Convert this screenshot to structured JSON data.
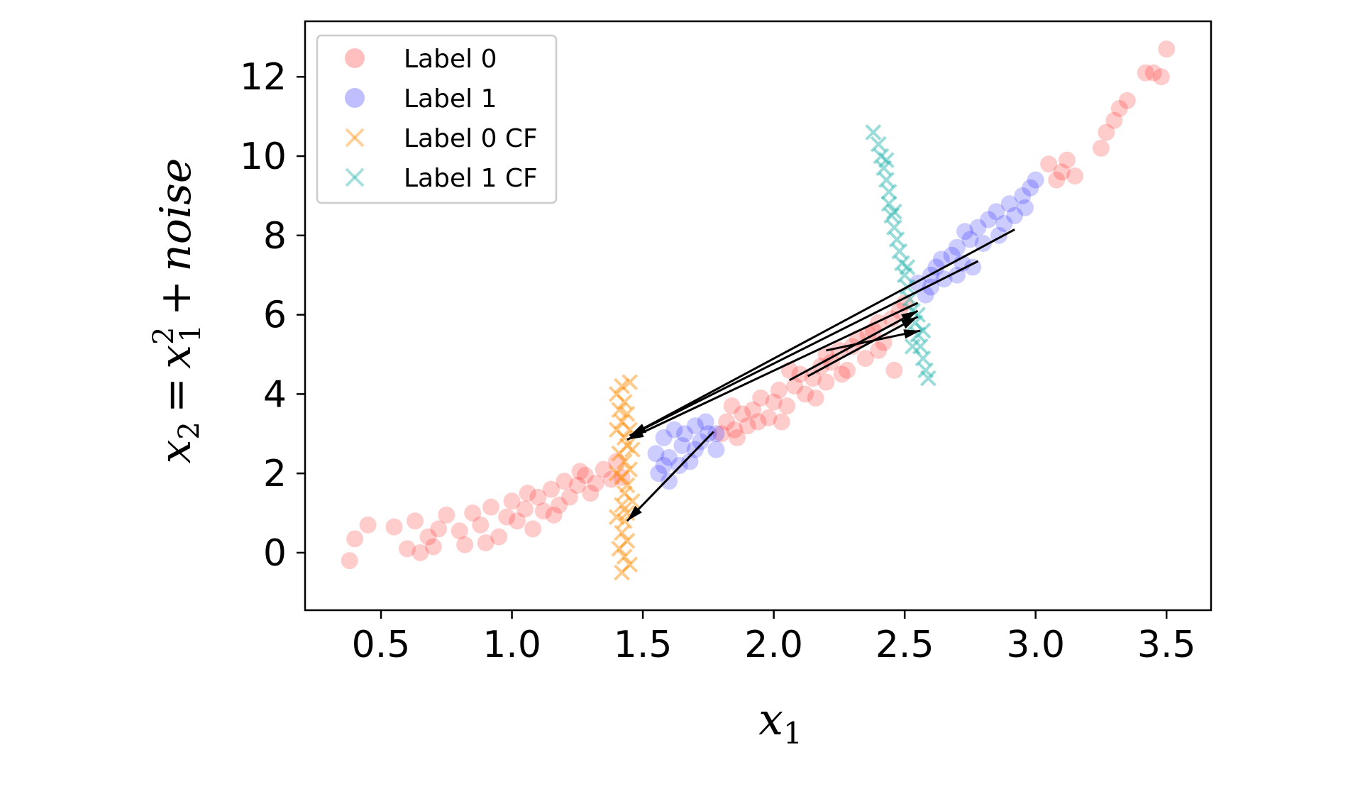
{
  "chart_data": {
    "type": "scatter",
    "title": "",
    "xlabel": {
      "base": "x",
      "sub": "1"
    },
    "ylabel": {
      "lhs_base": "x",
      "lhs_sub": "2",
      "eq": "=",
      "rhs_base": "x",
      "rhs_sup": "2",
      "rhs_sub": "1",
      "plus": "+",
      "noise": "noise"
    },
    "xlim": [
      0.21,
      3.67
    ],
    "ylim": [
      -1.45,
      13.4
    ],
    "xticks": [
      "0.5",
      "1.0",
      "1.5",
      "2.0",
      "2.5",
      "3.0",
      "3.5"
    ],
    "yticks": [
      "0",
      "2",
      "4",
      "6",
      "8",
      "10",
      "12"
    ],
    "grid": false,
    "legend_position": "top-left",
    "legend": [
      {
        "label": "Label 0",
        "marker": "circle",
        "color": "#ff0000"
      },
      {
        "label": "Label 1",
        "marker": "circle",
        "color": "#0000ff"
      },
      {
        "label": "Label 0 CF",
        "marker": "x",
        "color": "#ff8c00"
      },
      {
        "label": "Label 1 CF",
        "marker": "x",
        "color": "#20b2aa"
      }
    ],
    "series": [
      {
        "name": "Label 0",
        "marker": "circle",
        "color": "#ff0000",
        "points": [
          [
            0.38,
            -0.2
          ],
          [
            0.4,
            0.35
          ],
          [
            0.45,
            0.7
          ],
          [
            0.55,
            0.65
          ],
          [
            0.6,
            0.1
          ],
          [
            0.65,
            0.0
          ],
          [
            0.63,
            0.8
          ],
          [
            0.68,
            0.4
          ],
          [
            0.72,
            0.6
          ],
          [
            0.75,
            0.95
          ],
          [
            0.8,
            0.55
          ],
          [
            0.82,
            0.2
          ],
          [
            0.85,
            1.0
          ],
          [
            0.88,
            0.7
          ],
          [
            0.92,
            1.15
          ],
          [
            0.95,
            0.4
          ],
          [
            0.98,
            0.9
          ],
          [
            1.0,
            1.3
          ],
          [
            1.02,
            0.8
          ],
          [
            1.05,
            1.1
          ],
          [
            1.08,
            0.6
          ],
          [
            1.1,
            1.4
          ],
          [
            1.12,
            1.05
          ],
          [
            1.15,
            1.6
          ],
          [
            1.18,
            1.2
          ],
          [
            1.2,
            1.8
          ],
          [
            1.22,
            1.4
          ],
          [
            1.25,
            1.7
          ],
          [
            1.28,
            1.95
          ],
          [
            1.3,
            1.5
          ],
          [
            1.32,
            1.75
          ],
          [
            1.35,
            2.1
          ],
          [
            1.38,
            1.85
          ],
          [
            1.4,
            2.3
          ],
          [
            1.42,
            1.9
          ],
          [
            0.9,
            0.25
          ],
          [
            1.06,
            1.5
          ],
          [
            1.16,
            0.95
          ],
          [
            1.26,
            2.05
          ],
          [
            0.7,
            0.15
          ],
          [
            1.8,
            3.0
          ],
          [
            1.82,
            3.3
          ],
          [
            1.85,
            3.1
          ],
          [
            1.88,
            3.5
          ],
          [
            1.9,
            3.2
          ],
          [
            1.92,
            3.6
          ],
          [
            1.95,
            3.9
          ],
          [
            1.98,
            3.4
          ],
          [
            2.0,
            3.8
          ],
          [
            2.02,
            4.1
          ],
          [
            2.05,
            3.7
          ],
          [
            2.08,
            4.2
          ],
          [
            2.1,
            4.5
          ],
          [
            2.12,
            4.0
          ],
          [
            2.15,
            4.4
          ],
          [
            2.18,
            4.7
          ],
          [
            2.2,
            4.3
          ],
          [
            2.22,
            4.8
          ],
          [
            2.25,
            5.1
          ],
          [
            2.28,
            4.6
          ],
          [
            2.3,
            5.2
          ],
          [
            2.32,
            5.4
          ],
          [
            2.35,
            4.9
          ],
          [
            2.38,
            5.6
          ],
          [
            2.4,
            5.8
          ],
          [
            2.42,
            5.3
          ],
          [
            2.45,
            5.9
          ],
          [
            2.48,
            6.1
          ],
          [
            2.5,
            6.3
          ],
          [
            2.46,
            4.6
          ],
          [
            1.86,
            2.9
          ],
          [
            1.94,
            3.3
          ],
          [
            2.06,
            4.6
          ],
          [
            2.16,
            3.9
          ],
          [
            2.26,
            4.5
          ],
          [
            2.36,
            5.5
          ],
          [
            1.84,
            3.7
          ],
          [
            2.03,
            3.3
          ],
          [
            2.2,
            5.0
          ],
          [
            2.4,
            5.1
          ],
          [
            3.05,
            9.8
          ],
          [
            3.08,
            9.4
          ],
          [
            3.1,
            9.6
          ],
          [
            3.12,
            9.9
          ],
          [
            3.15,
            9.5
          ],
          [
            3.25,
            10.2
          ],
          [
            3.27,
            10.6
          ],
          [
            3.3,
            10.9
          ],
          [
            3.32,
            11.2
          ],
          [
            3.35,
            11.4
          ],
          [
            3.42,
            12.1
          ],
          [
            3.45,
            12.1
          ],
          [
            3.48,
            12.0
          ],
          [
            3.5,
            12.7
          ]
        ]
      },
      {
        "name": "Label 1",
        "marker": "circle",
        "color": "#0000ff",
        "points": [
          [
            1.55,
            2.5
          ],
          [
            1.58,
            2.9
          ],
          [
            1.6,
            2.4
          ],
          [
            1.62,
            3.1
          ],
          [
            1.65,
            2.7
          ],
          [
            1.68,
            2.3
          ],
          [
            1.7,
            3.2
          ],
          [
            1.72,
            2.8
          ],
          [
            1.75,
            3.0
          ],
          [
            1.78,
            2.6
          ],
          [
            1.56,
            2.0
          ],
          [
            1.6,
            1.8
          ],
          [
            1.64,
            2.2
          ],
          [
            1.7,
            2.6
          ],
          [
            1.74,
            3.3
          ],
          [
            1.78,
            3.0
          ],
          [
            1.66,
            3.0
          ],
          [
            1.58,
            2.2
          ],
          [
            2.55,
            6.8
          ],
          [
            2.58,
            6.5
          ],
          [
            2.6,
            7.0
          ],
          [
            2.62,
            7.2
          ],
          [
            2.65,
            6.9
          ],
          [
            2.68,
            7.5
          ],
          [
            2.7,
            7.7
          ],
          [
            2.72,
            7.3
          ],
          [
            2.75,
            7.9
          ],
          [
            2.78,
            8.2
          ],
          [
            2.8,
            7.8
          ],
          [
            2.82,
            8.4
          ],
          [
            2.85,
            8.6
          ],
          [
            2.88,
            8.3
          ],
          [
            2.9,
            8.8
          ],
          [
            2.92,
            8.5
          ],
          [
            2.95,
            9.0
          ],
          [
            2.98,
            9.2
          ],
          [
            3.0,
            9.4
          ],
          [
            2.7,
            7.0
          ],
          [
            2.76,
            7.2
          ],
          [
            2.86,
            8.0
          ],
          [
            2.96,
            8.7
          ],
          [
            2.64,
            7.4
          ],
          [
            2.73,
            8.1
          ],
          [
            2.6,
            6.7
          ]
        ]
      },
      {
        "name": "Label 0 CF",
        "marker": "x",
        "color": "#ff8c00",
        "points": [
          [
            1.42,
            4.2
          ],
          [
            1.45,
            4.3
          ],
          [
            1.4,
            4.0
          ],
          [
            1.43,
            3.8
          ],
          [
            1.41,
            3.6
          ],
          [
            1.44,
            3.5
          ],
          [
            1.42,
            3.3
          ],
          [
            1.45,
            3.1
          ],
          [
            1.43,
            2.9
          ],
          [
            1.44,
            2.7
          ],
          [
            1.41,
            2.5
          ],
          [
            1.43,
            2.3
          ],
          [
            1.45,
            2.1
          ],
          [
            1.42,
            1.9
          ],
          [
            1.44,
            1.7
          ],
          [
            1.43,
            1.5
          ],
          [
            1.42,
            1.2
          ],
          [
            1.44,
            1.0
          ],
          [
            1.43,
            0.8
          ],
          [
            1.42,
            0.5
          ],
          [
            1.44,
            0.3
          ],
          [
            1.41,
            0.1
          ],
          [
            1.43,
            -0.1
          ],
          [
            1.45,
            -0.3
          ],
          [
            1.42,
            -0.5
          ],
          [
            1.4,
            3.1
          ],
          [
            1.46,
            2.6
          ],
          [
            1.4,
            2.0
          ],
          [
            1.46,
            1.3
          ],
          [
            1.4,
            0.9
          ]
        ]
      },
      {
        "name": "Label 1 CF",
        "marker": "x",
        "color": "#20b2aa",
        "points": [
          [
            2.38,
            10.6
          ],
          [
            2.4,
            10.3
          ],
          [
            2.41,
            10.0
          ],
          [
            2.42,
            9.7
          ],
          [
            2.43,
            9.4
          ],
          [
            2.44,
            9.1
          ],
          [
            2.44,
            8.8
          ],
          [
            2.45,
            8.5
          ],
          [
            2.46,
            8.2
          ],
          [
            2.47,
            7.9
          ],
          [
            2.48,
            7.6
          ],
          [
            2.49,
            7.3
          ],
          [
            2.5,
            7.0
          ],
          [
            2.51,
            6.7
          ],
          [
            2.52,
            6.4
          ],
          [
            2.53,
            6.1
          ],
          [
            2.54,
            5.8
          ],
          [
            2.55,
            5.5
          ],
          [
            2.56,
            5.2
          ],
          [
            2.57,
            4.9
          ],
          [
            2.58,
            4.6
          ],
          [
            2.59,
            4.4
          ],
          [
            2.55,
            6.0
          ],
          [
            2.53,
            5.2
          ],
          [
            2.57,
            5.6
          ],
          [
            2.51,
            7.2
          ],
          [
            2.46,
            8.6
          ],
          [
            2.43,
            9.9
          ]
        ]
      }
    ],
    "arrows": [
      [
        [
          2.92,
          8.15
        ],
        [
          1.45,
          2.95
        ]
      ],
      [
        [
          2.78,
          7.35
        ],
        [
          1.45,
          2.95
        ]
      ],
      [
        [
          2.55,
          6.3
        ],
        [
          1.44,
          2.85
        ]
      ],
      [
        [
          2.06,
          4.35
        ],
        [
          2.55,
          6.1
        ]
      ],
      [
        [
          2.13,
          4.45
        ],
        [
          2.55,
          5.95
        ]
      ],
      [
        [
          2.2,
          5.1
        ],
        [
          2.56,
          5.6
        ]
      ],
      [
        [
          1.77,
          3.05
        ],
        [
          1.44,
          0.8
        ]
      ]
    ]
  }
}
